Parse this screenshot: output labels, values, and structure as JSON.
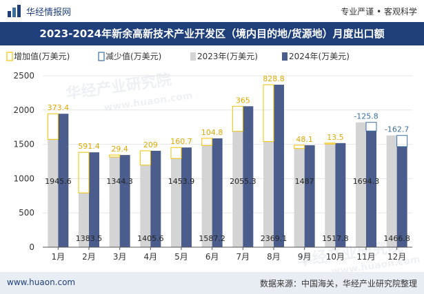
{
  "header": {
    "site_name": "华经情报网",
    "slogan": "专业严谨 • 客观科学"
  },
  "watermark": {
    "text": "华经产业研究院",
    "url": "www.huaon.com"
  },
  "colors": {
    "navy": "#1f3f7a",
    "bar_2023": "#d4d4d4",
    "bar_2024": "#4a5d8c",
    "increase": "#f2c200",
    "decrease": "#3a6fa0"
  },
  "chart_data": {
    "type": "bar",
    "title": "2023-2024年新余高新技术产业开发区（境内目的地/货源地）月度出口额",
    "categories": [
      "1月",
      "2月",
      "3月",
      "4月",
      "5月",
      "6月",
      "7月",
      "8月",
      "9月",
      "10月",
      "11月",
      "12月"
    ],
    "series": [
      {
        "name": "2023年(万美元)",
        "values": [
          1572.2,
          792.1,
          1314.9,
          1196.6,
          1293.2,
          1482.4,
          1690.3,
          1540.3,
          1438.9,
          1504.3,
          1820.1,
          1629.5
        ]
      },
      {
        "name": "2024年(万美元)",
        "values": [
          1945.6,
          1383.5,
          1344.3,
          1405.6,
          1453.9,
          1587.2,
          2055.3,
          2369.1,
          1487,
          1517.8,
          1694.3,
          1466.8
        ]
      }
    ],
    "change": {
      "labels": [
        "373.4",
        "591.4",
        "29.4",
        "209",
        "160.7",
        "104.8",
        "365",
        "828.8",
        "48.1",
        "13.5",
        "-125.8",
        "-162.7"
      ],
      "increase_legend": "增加值(万美元)",
      "decrease_legend": "减少值(万美元)"
    },
    "value_labels_2024": [
      "1945.6",
      "1383.5",
      "1344.3",
      "1405.6",
      "1453.9",
      "1587.2",
      "2055.3",
      "2369.1",
      "1487",
      "1517.8",
      "1694.3",
      "1466.8"
    ],
    "y_ticks": [
      "0",
      "500",
      "1000",
      "1500",
      "2000",
      "2500"
    ],
    "ylim": [
      0,
      2500
    ],
    "legend_position": "top-left"
  },
  "footer": {
    "url": "www.huaon.com",
    "source": "数据来源：中国海关，华经产业研究院整理"
  }
}
